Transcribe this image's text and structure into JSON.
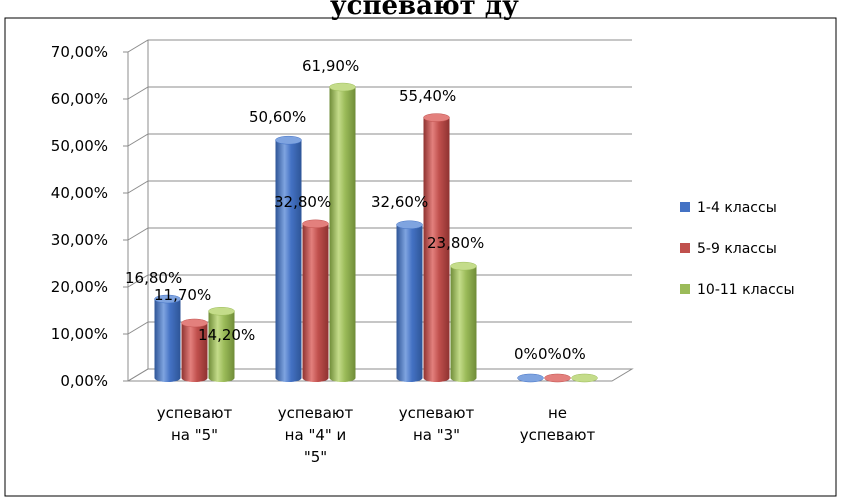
{
  "page_heading": "успевают            ду",
  "chart_data": {
    "type": "bar",
    "categories": [
      [
        "успевают",
        "на \"5\""
      ],
      [
        "успевают",
        "на \"4\" и",
        "\"5\""
      ],
      [
        "успевают",
        "на \"3\""
      ],
      [
        "не",
        "успевают"
      ]
    ],
    "series": [
      {
        "name": "1-4 классы",
        "values": [
          16.8,
          50.6,
          32.6,
          0
        ],
        "labels": [
          "16,80%",
          "50,60%",
          "32,60%",
          "0%"
        ]
      },
      {
        "name": "5-9 классы",
        "values": [
          11.7,
          32.8,
          55.4,
          0
        ],
        "labels": [
          "11,70%",
          "32,80%",
          "55,40%",
          "0%"
        ]
      },
      {
        "name": "10-11 классы",
        "values": [
          14.2,
          61.9,
          23.8,
          0
        ],
        "labels": [
          "14,20%",
          "61,90%",
          "23,80%",
          "0%"
        ]
      }
    ],
    "y_ticks": [
      "0,00%",
      "10,00%",
      "20,00%",
      "30,00%",
      "40,00%",
      "50,00%",
      "60,00%",
      "70,00%"
    ],
    "ylim": [
      0,
      70
    ],
    "grid": true,
    "legend_position": "right",
    "colors": {
      "series": [
        "#4472C4",
        "#C0504D",
        "#9BBB59"
      ],
      "series_light": [
        "#7FA4E0",
        "#E3807D",
        "#C4DC8A"
      ],
      "series_dark": [
        "#2E5597",
        "#8E3230",
        "#6F8C38"
      ]
    }
  }
}
